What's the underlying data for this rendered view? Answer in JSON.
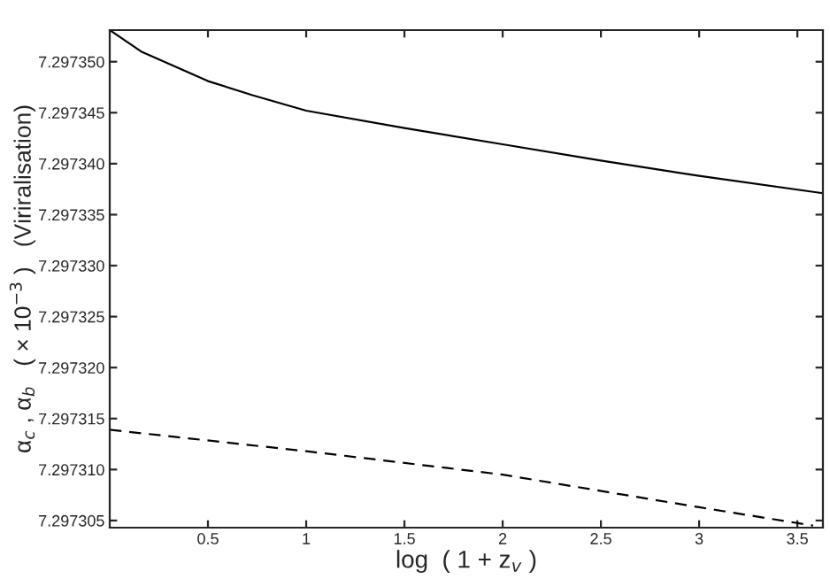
{
  "chart_data": {
    "type": "line",
    "xlabel": "log  ( 1 + z$_{v}$ )",
    "ylabel": "α$_{c}$ , α$_{b}$   ( × 10$^{−3}$ )   (Viriralisation)",
    "series": [
      {
        "color": "#000000",
        "line_style": "solid",
        "x": [
          0,
          0.16,
          0.5,
          0.73,
          1.0,
          1.5,
          2.0,
          2.5,
          3.0,
          3.63
        ],
        "values": [
          7.2973531,
          7.297351,
          7.2973481,
          7.2973467,
          7.2973452,
          7.2973435,
          7.2973419,
          7.2973403,
          7.2973388,
          7.2973371
        ]
      },
      {
        "color": "#000000",
        "line_style": "dashed",
        "x": [
          0,
          1,
          2,
          3,
          3.58
        ],
        "values": [
          7.2973139,
          7.2973118,
          7.2973095,
          7.2973063,
          7.2973045
        ]
      }
    ],
    "xlim": [
      0,
      3.63
    ],
    "xticks": [
      0.5,
      1,
      1.5,
      2,
      2.5,
      3,
      3.5
    ],
    "ylim": [
      7.2973043,
      7.2973531
    ],
    "yticks": [
      {
        "value": 7.297305,
        "label": "7.297305"
      },
      {
        "value": 7.29731,
        "label": "7.297310"
      },
      {
        "value": 7.297315,
        "label": "7.297315"
      },
      {
        "value": 7.29732,
        "label": "7.297320"
      },
      {
        "value": 7.297325,
        "label": "7.297325"
      },
      {
        "value": 7.29733,
        "label": "7.297330"
      },
      {
        "value": 7.297335,
        "label": "7.297335"
      },
      {
        "value": 7.29734,
        "label": "7.297340"
      },
      {
        "value": 7.297345,
        "label": "7.297345"
      },
      {
        "value": 7.29735,
        "label": "7.297350"
      }
    ],
    "grid": false,
    "legend": false,
    "marker": "none"
  }
}
